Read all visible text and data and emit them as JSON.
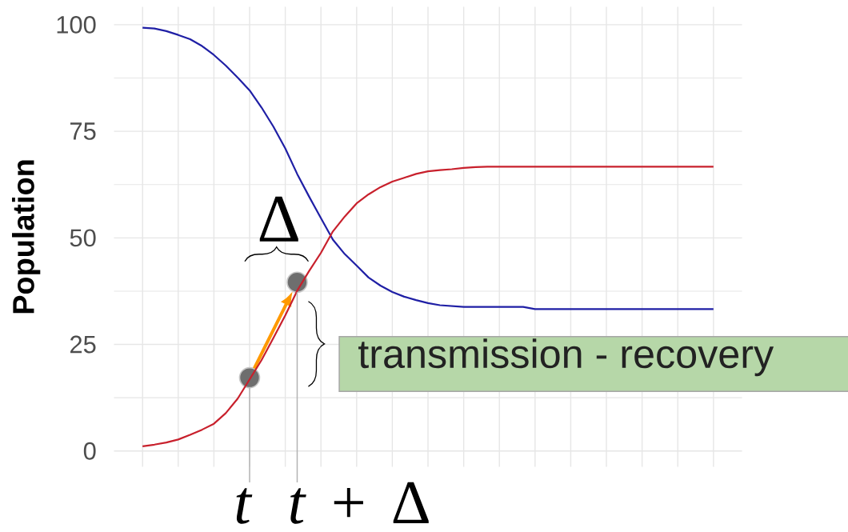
{
  "chart_data": {
    "type": "line",
    "ylabel": "Population",
    "categories": [
      null,
      null,
      null,
      null,
      null,
      null,
      null,
      null,
      null,
      null,
      null,
      null,
      null,
      null,
      null,
      null,
      null,
      null,
      null,
      null,
      null,
      null,
      null,
      null,
      null,
      null,
      null,
      null,
      null,
      null,
      null,
      null,
      null,
      null,
      null,
      null,
      null,
      null,
      null,
      null,
      null,
      null,
      null,
      null,
      null,
      null,
      null,
      null,
      null
    ],
    "ylim": [
      -3.7,
      104.2
    ],
    "yticks": [
      0,
      25,
      50,
      75,
      100
    ],
    "grid": true,
    "tick_labels": "y",
    "series": [
      {
        "color": "#1f1fa5",
        "values": [
          99.3,
          99.1,
          98.5,
          97.6,
          96.6,
          95.0,
          92.9,
          90.4,
          87.6,
          84.6,
          80.6,
          76.1,
          71.0,
          65.0,
          59.7,
          54.6,
          49.6,
          46.2,
          43.5,
          40.7,
          38.8,
          37.3,
          36.2,
          35.4,
          34.7,
          34.2,
          34.0,
          33.8,
          33.8,
          33.8,
          33.8,
          33.8,
          33.8,
          33.3,
          33.3,
          33.3,
          33.3,
          33.3,
          33.3,
          33.3,
          33.3,
          33.3,
          33.3,
          33.3,
          33.3,
          33.3,
          33.3,
          33.3,
          33.3
        ]
      },
      {
        "color": "#c8202c",
        "values": [
          1.1,
          1.5,
          2.0,
          2.7,
          3.8,
          5.0,
          6.4,
          8.9,
          12.3,
          16.8,
          21.3,
          26.5,
          31.8,
          37.6,
          42.2,
          46.5,
          51.5,
          55.0,
          58.1,
          60.2,
          61.9,
          63.2,
          64.1,
          65.0,
          65.6,
          65.9,
          66.1,
          66.4,
          66.6,
          66.7,
          66.7,
          66.7,
          66.7,
          66.7,
          66.7,
          66.7,
          66.7,
          66.7,
          66.7,
          66.7,
          66.7,
          66.7,
          66.7,
          66.7,
          66.7,
          66.7,
          66.7,
          66.7,
          66.7
        ]
      },
      {
        "type": "scatter",
        "color": "#6e6e6e",
        "marker": "circle",
        "values": [
          null,
          null,
          null,
          null,
          null,
          null,
          null,
          null,
          null,
          17.2,
          null,
          null,
          null,
          39.6,
          null,
          null,
          null,
          null,
          null,
          null,
          null,
          null,
          null,
          null,
          null,
          null,
          null,
          null,
          null,
          null,
          null,
          null,
          null,
          null,
          null,
          null,
          null,
          null,
          null,
          null,
          null,
          null,
          null,
          null,
          null,
          null,
          null,
          null,
          null
        ]
      }
    ],
    "annotations": [
      "Δ",
      "t",
      "*t* + Δ",
      "transmission - recovery"
    ]
  }
}
